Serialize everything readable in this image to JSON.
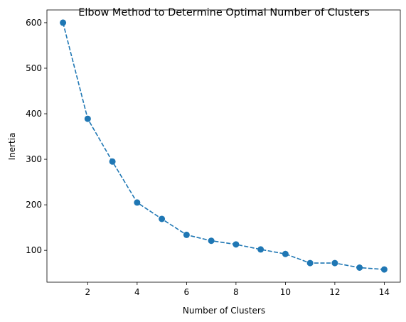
{
  "chart_data": {
    "type": "line",
    "title": "Elbow Method to Determine Optimal Number of Clusters",
    "xlabel": "Number of Clusters",
    "ylabel": "Inertia",
    "xlim": [
      0.35,
      14.65
    ],
    "ylim": [
      30,
      628
    ],
    "xticks": [
      2,
      4,
      6,
      8,
      10,
      12,
      14
    ],
    "yticks": [
      100,
      200,
      300,
      400,
      500,
      600
    ],
    "grid": false,
    "line_style": "dashed",
    "marker": "circle",
    "series": [
      {
        "color": "#1f77b4",
        "x": [
          1,
          2,
          3,
          4,
          5,
          6,
          7,
          8,
          9,
          10,
          11,
          12,
          13,
          14
        ],
        "y": [
          600,
          389,
          295,
          205,
          169,
          134,
          121,
          113,
          102,
          92,
          72,
          72,
          62,
          58
        ]
      }
    ]
  }
}
